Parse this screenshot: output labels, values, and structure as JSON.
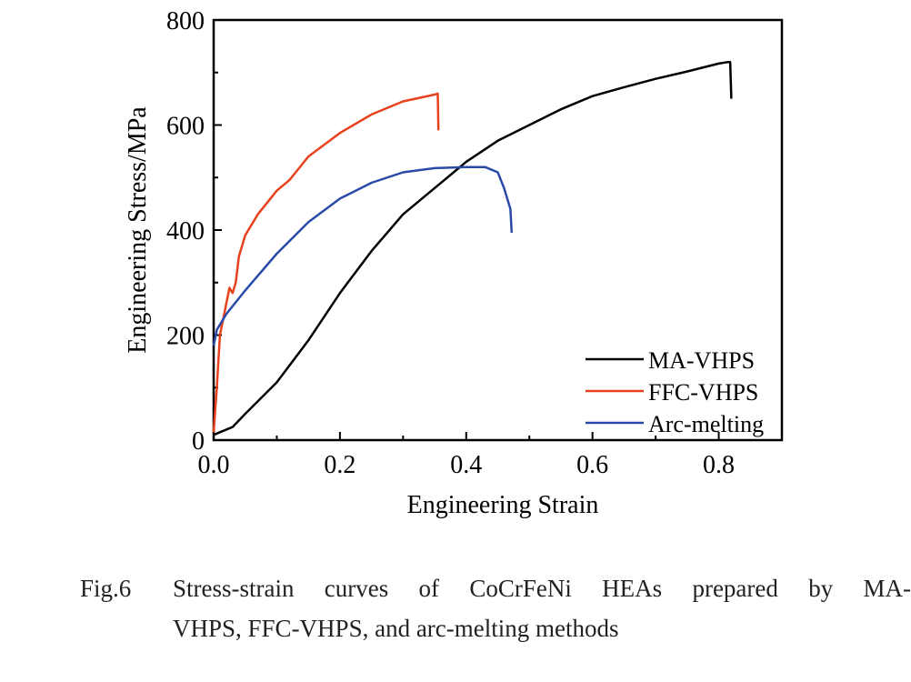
{
  "chart_data": {
    "type": "line",
    "xlabel": "Engineering Strain",
    "ylabel": "Engineering Stress/MPa",
    "xlim": [
      0,
      0.9
    ],
    "ylim": [
      0,
      800
    ],
    "xticks": [
      "0.0",
      "0.2",
      "0.4",
      "0.6",
      "0.8"
    ],
    "yticks": [
      "0",
      "200",
      "400",
      "600",
      "800"
    ],
    "legend_position": "bottom-right",
    "series": [
      {
        "name": "MA-VHPS",
        "color": "#000000",
        "x": [
          0,
          0.01,
          0.03,
          0.05,
          0.1,
          0.15,
          0.2,
          0.25,
          0.3,
          0.35,
          0.4,
          0.45,
          0.5,
          0.55,
          0.6,
          0.65,
          0.7,
          0.75,
          0.8,
          0.815,
          0.818,
          0.82
        ],
        "y": [
          10,
          15,
          25,
          50,
          110,
          190,
          280,
          360,
          430,
          480,
          530,
          570,
          600,
          630,
          655,
          672,
          688,
          702,
          717,
          720,
          720,
          650
        ]
      },
      {
        "name": "FFC-VHPS",
        "color": "#e8411e",
        "x": [
          0,
          0.005,
          0.01,
          0.02,
          0.025,
          0.03,
          0.035,
          0.04,
          0.05,
          0.07,
          0.1,
          0.12,
          0.15,
          0.2,
          0.25,
          0.3,
          0.35,
          0.355,
          0.356
        ],
        "y": [
          15,
          100,
          200,
          260,
          290,
          280,
          300,
          350,
          390,
          430,
          475,
          495,
          540,
          585,
          620,
          645,
          658,
          660,
          590
        ]
      },
      {
        "name": "Arc-melting",
        "color": "#2a4aa8",
        "x": [
          0,
          0.005,
          0.02,
          0.05,
          0.1,
          0.15,
          0.2,
          0.25,
          0.3,
          0.35,
          0.4,
          0.43,
          0.45,
          0.46,
          0.47,
          0.472
        ],
        "y": [
          180,
          210,
          240,
          285,
          355,
          415,
          460,
          490,
          510,
          518,
          520,
          520,
          510,
          480,
          440,
          395
        ]
      }
    ]
  },
  "caption": {
    "label": "Fig.6",
    "line1": "Stress-strain curves of CoCrFeNi HEAs prepared by MA-",
    "line2": "VHPS, FFC-VHPS, and arc-melting methods"
  }
}
